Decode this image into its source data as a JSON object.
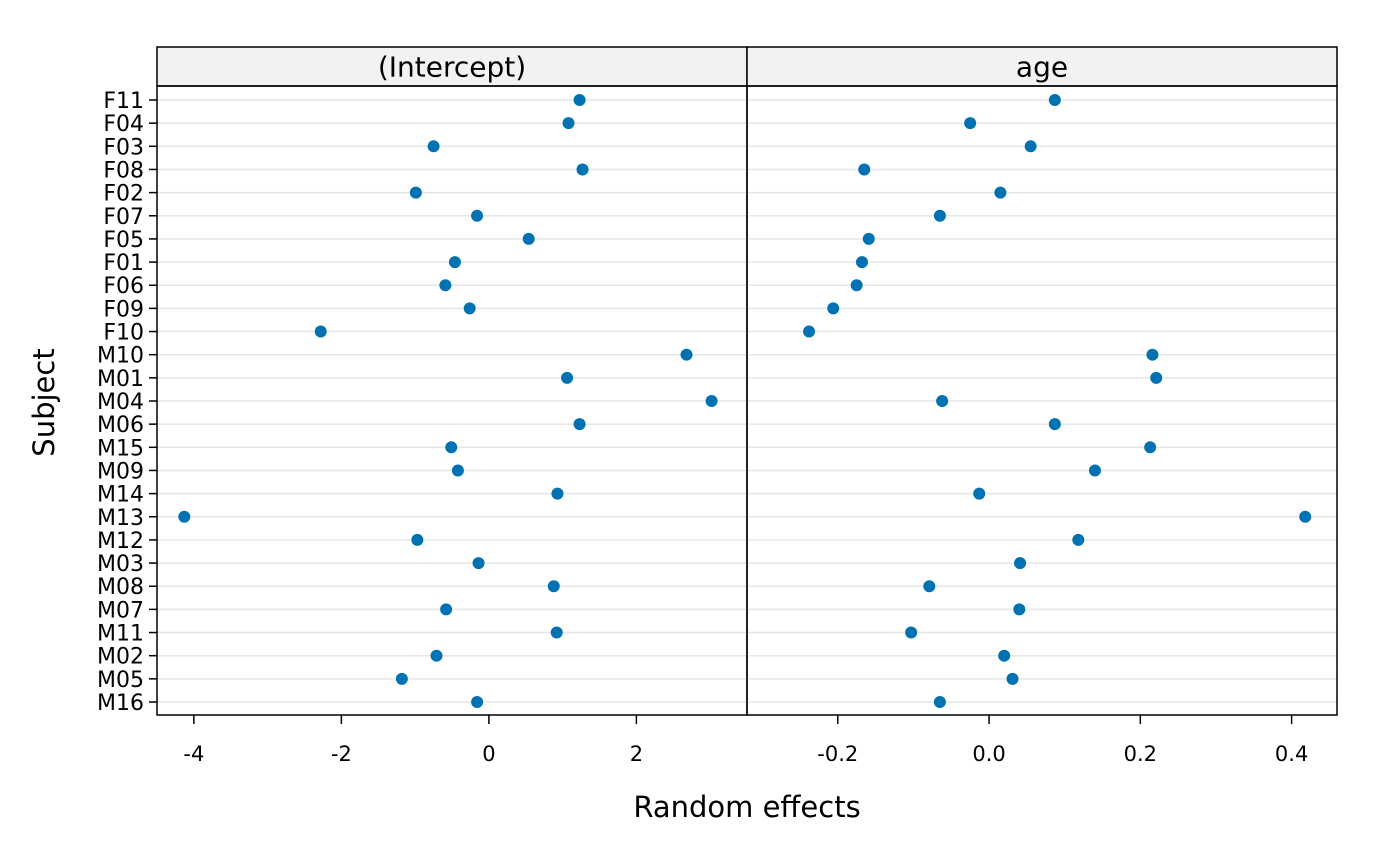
{
  "chart_data": {
    "type": "scatter",
    "subjects": [
      "F11",
      "F04",
      "F03",
      "F08",
      "F02",
      "F07",
      "F05",
      "F01",
      "F06",
      "F09",
      "F10",
      "M10",
      "M01",
      "M04",
      "M06",
      "M15",
      "M09",
      "M14",
      "M13",
      "M12",
      "M03",
      "M08",
      "M07",
      "M11",
      "M02",
      "M05",
      "M16"
    ],
    "panels": [
      {
        "name": "(Intercept)",
        "ticks": [
          -4,
          -2,
          0,
          2
        ],
        "tick_labels": [
          "-4",
          "-2",
          "0",
          "2"
        ],
        "xlim": [
          -4.5,
          3.5
        ],
        "values": [
          1.23,
          1.08,
          -0.75,
          1.27,
          -0.99,
          -0.16,
          0.54,
          -0.46,
          -0.59,
          -0.26,
          -2.28,
          2.68,
          1.06,
          3.02,
          1.23,
          -0.51,
          -0.42,
          0.93,
          -4.13,
          -0.97,
          -0.14,
          0.88,
          -0.58,
          0.92,
          -0.71,
          -1.18,
          -0.16
        ]
      },
      {
        "name": "age",
        "ticks": [
          -0.2,
          0.0,
          0.2,
          0.4
        ],
        "tick_labels": [
          "-0.2",
          "0.0",
          "0.2",
          "0.4"
        ],
        "xlim": [
          -0.32,
          0.46
        ],
        "values": [
          0.087,
          -0.025,
          0.055,
          -0.165,
          0.015,
          -0.065,
          -0.159,
          -0.168,
          -0.175,
          -0.206,
          -0.238,
          0.216,
          0.221,
          -0.062,
          0.087,
          0.213,
          0.14,
          -0.013,
          0.418,
          0.118,
          0.041,
          -0.079,
          0.04,
          -0.103,
          0.02,
          0.031,
          -0.065
        ]
      }
    ],
    "xlabel": "Random effects",
    "ylabel": "Subject",
    "point_color": "#0072b2",
    "grid": true,
    "strip_fill": "#f2f2f2",
    "legend": "none"
  }
}
